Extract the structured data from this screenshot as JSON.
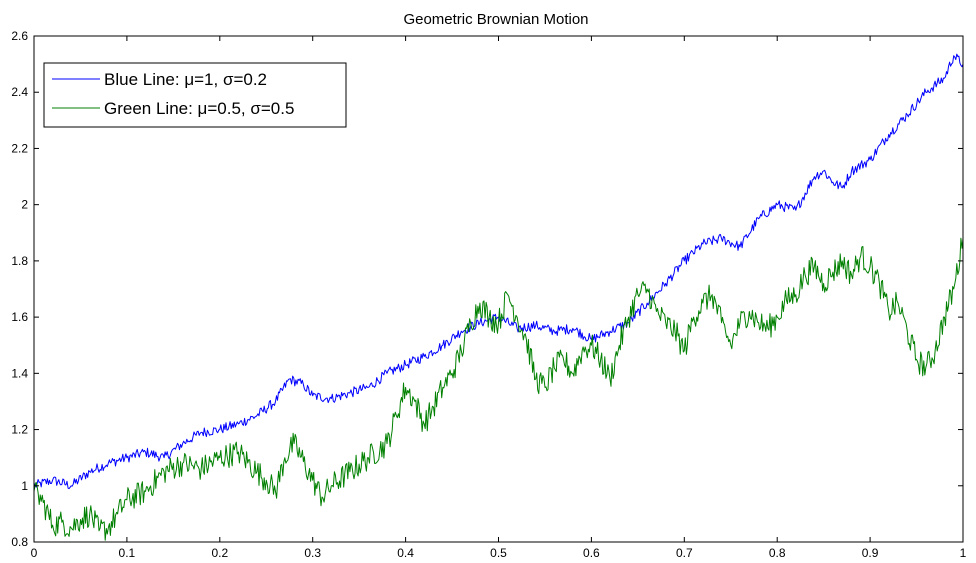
{
  "chart_data": {
    "type": "line",
    "title": "Geometric Brownian Motion",
    "xlabel": "",
    "ylabel": "",
    "xlim": [
      0,
      1
    ],
    "ylim": [
      0.8,
      2.6
    ],
    "xticks": [
      "0",
      "0.1",
      "0.2",
      "0.3",
      "0.4",
      "0.5",
      "0.6",
      "0.7",
      "0.8",
      "0.9",
      "1"
    ],
    "yticks": [
      "0.8",
      "1",
      "1.2",
      "1.4",
      "1.6",
      "1.8",
      "2",
      "2.2",
      "2.4",
      "2.6"
    ],
    "grid": false,
    "legend_position": "top-left",
    "series": [
      {
        "name": "Blue Line: μ=1, σ=0.2",
        "color": "#0000ff",
        "x": [
          0,
          0.02,
          0.04,
          0.06,
          0.08,
          0.1,
          0.12,
          0.14,
          0.16,
          0.18,
          0.2,
          0.22,
          0.24,
          0.26,
          0.275,
          0.29,
          0.3,
          0.32,
          0.34,
          0.36,
          0.38,
          0.4,
          0.42,
          0.44,
          0.46,
          0.48,
          0.5,
          0.52,
          0.54,
          0.56,
          0.58,
          0.6,
          0.62,
          0.64,
          0.66,
          0.68,
          0.7,
          0.72,
          0.74,
          0.76,
          0.78,
          0.8,
          0.82,
          0.84,
          0.85,
          0.86,
          0.87,
          0.88,
          0.9,
          0.92,
          0.94,
          0.96,
          0.98,
          0.99,
          1.0
        ],
        "y": [
          1.0,
          1.02,
          1.0,
          1.05,
          1.08,
          1.1,
          1.12,
          1.1,
          1.15,
          1.19,
          1.2,
          1.22,
          1.25,
          1.3,
          1.38,
          1.36,
          1.32,
          1.31,
          1.33,
          1.35,
          1.4,
          1.43,
          1.46,
          1.5,
          1.55,
          1.58,
          1.6,
          1.56,
          1.57,
          1.55,
          1.56,
          1.52,
          1.55,
          1.58,
          1.65,
          1.72,
          1.8,
          1.86,
          1.88,
          1.85,
          1.95,
          2.0,
          1.98,
          2.1,
          2.12,
          2.08,
          2.06,
          2.12,
          2.16,
          2.25,
          2.32,
          2.4,
          2.45,
          2.53,
          2.5
        ]
      },
      {
        "name": "Green Line: μ=0.5, σ=0.5",
        "color": "#008000",
        "x": [
          0,
          0.01,
          0.02,
          0.03,
          0.04,
          0.05,
          0.06,
          0.07,
          0.08,
          0.09,
          0.1,
          0.12,
          0.14,
          0.16,
          0.18,
          0.2,
          0.22,
          0.24,
          0.25,
          0.26,
          0.27,
          0.28,
          0.3,
          0.31,
          0.32,
          0.34,
          0.36,
          0.38,
          0.39,
          0.4,
          0.41,
          0.42,
          0.43,
          0.44,
          0.45,
          0.46,
          0.47,
          0.48,
          0.49,
          0.5,
          0.51,
          0.52,
          0.53,
          0.54,
          0.55,
          0.56,
          0.57,
          0.58,
          0.59,
          0.6,
          0.61,
          0.62,
          0.63,
          0.64,
          0.65,
          0.66,
          0.67,
          0.68,
          0.69,
          0.7,
          0.71,
          0.72,
          0.73,
          0.74,
          0.75,
          0.76,
          0.77,
          0.78,
          0.79,
          0.8,
          0.81,
          0.82,
          0.83,
          0.84,
          0.85,
          0.86,
          0.87,
          0.88,
          0.89,
          0.9,
          0.91,
          0.92,
          0.93,
          0.94,
          0.95,
          0.96,
          0.97,
          0.98,
          0.99,
          1.0
        ],
        "y": [
          0.98,
          0.94,
          0.86,
          0.87,
          0.85,
          0.88,
          0.9,
          0.84,
          0.85,
          0.9,
          0.95,
          0.98,
          1.05,
          1.08,
          1.06,
          1.1,
          1.12,
          1.05,
          1.02,
          0.98,
          1.1,
          1.15,
          1.02,
          0.96,
          1.0,
          1.05,
          1.1,
          1.15,
          1.25,
          1.35,
          1.3,
          1.22,
          1.28,
          1.35,
          1.4,
          1.48,
          1.58,
          1.65,
          1.6,
          1.58,
          1.68,
          1.6,
          1.52,
          1.38,
          1.35,
          1.42,
          1.45,
          1.4,
          1.48,
          1.5,
          1.45,
          1.38,
          1.5,
          1.6,
          1.68,
          1.7,
          1.62,
          1.58,
          1.55,
          1.48,
          1.6,
          1.65,
          1.68,
          1.58,
          1.5,
          1.58,
          1.62,
          1.58,
          1.56,
          1.6,
          1.66,
          1.68,
          1.75,
          1.78,
          1.72,
          1.76,
          1.8,
          1.75,
          1.82,
          1.78,
          1.72,
          1.62,
          1.65,
          1.55,
          1.45,
          1.42,
          1.48,
          1.6,
          1.7,
          1.88
        ]
      }
    ]
  }
}
